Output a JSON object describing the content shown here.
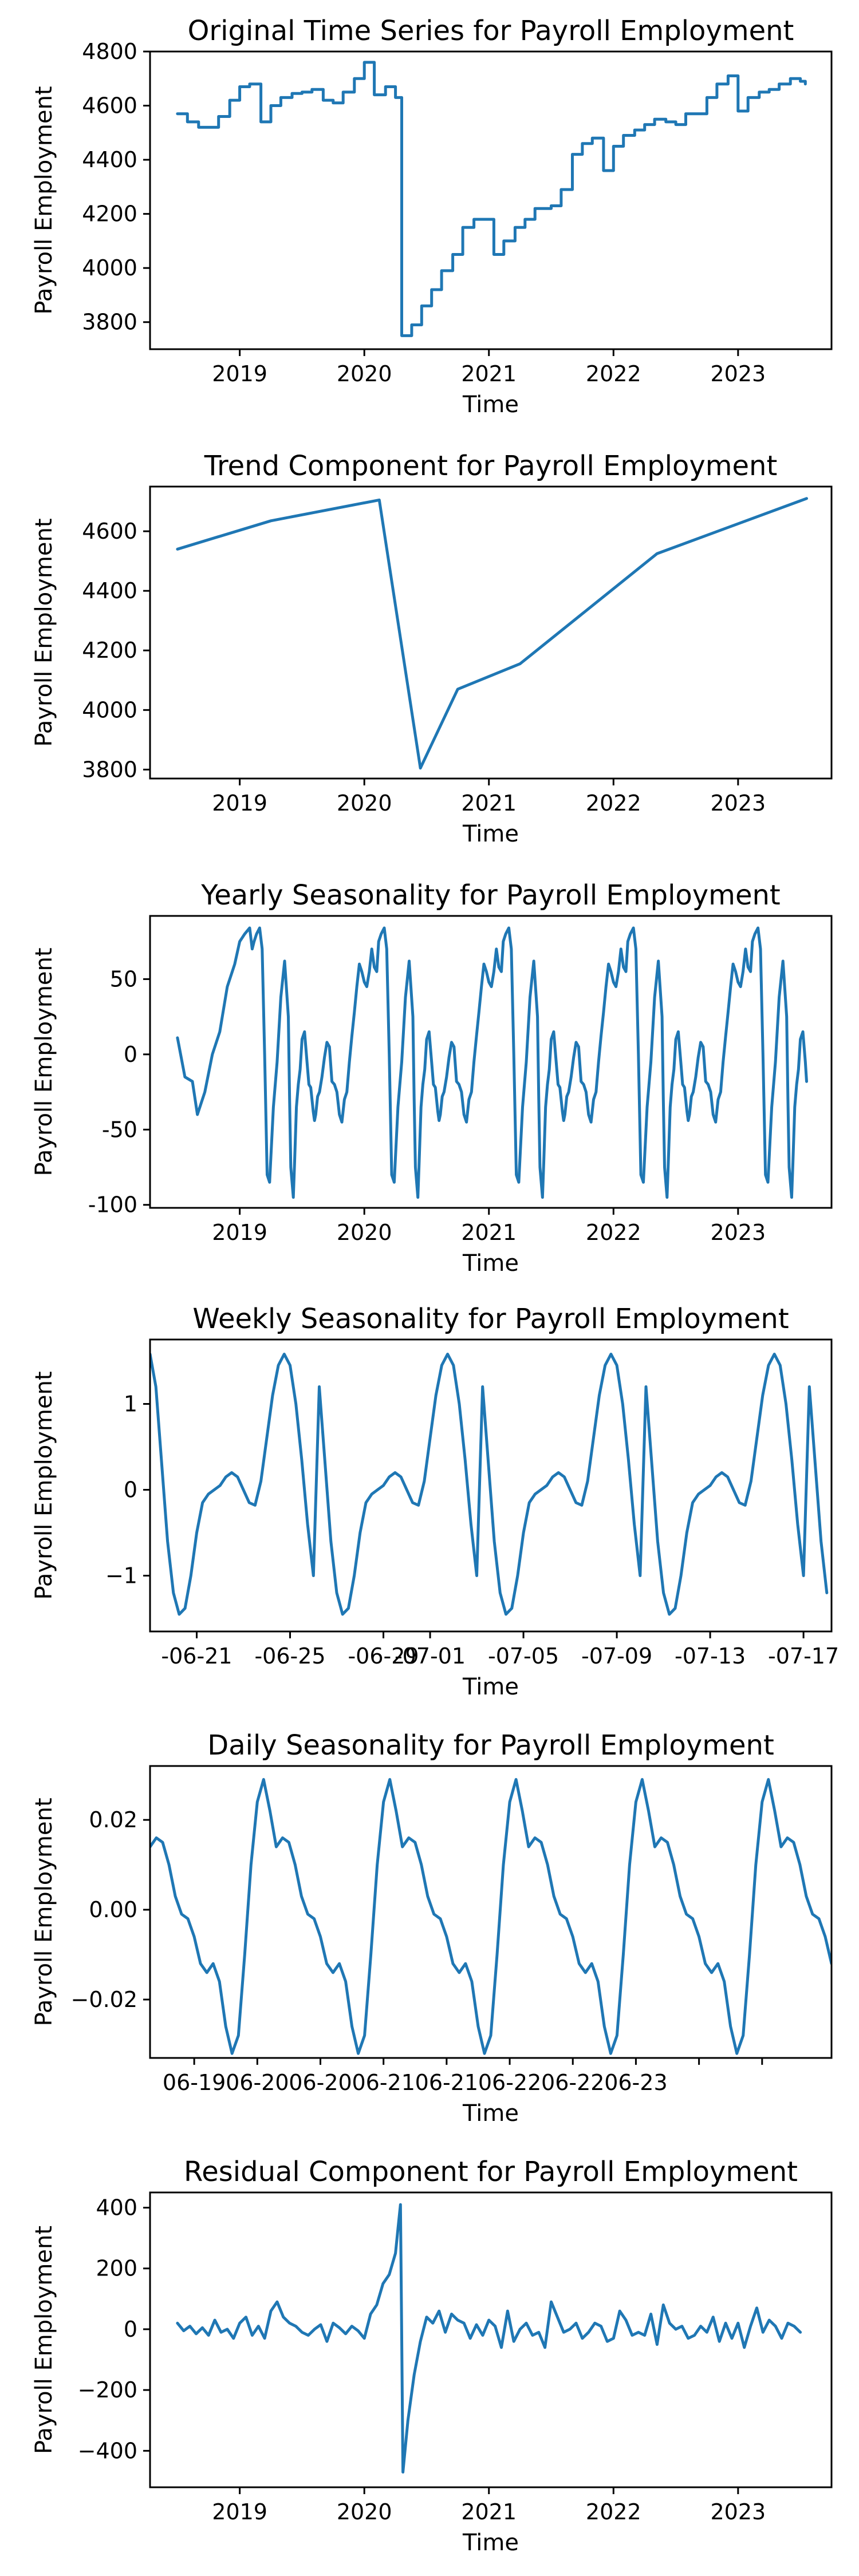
{
  "colors": {
    "line": "#1f77b4"
  },
  "chart_data": [
    {
      "type": "line",
      "title": "Original Time Series for Payroll Employment",
      "xlabel": "Time",
      "ylabel": "Payroll Employment",
      "step": true,
      "xlim": [
        2018.28,
        2023.75
      ],
      "ylim": [
        3700,
        4800
      ],
      "xticks": [
        2019,
        2020,
        2021,
        2022,
        2023
      ],
      "xtick_labels": [
        "2019",
        "2020",
        "2021",
        "2022",
        "2023"
      ],
      "yticks": [
        3800,
        4000,
        4200,
        4400,
        4600,
        4800
      ],
      "ytick_labels": [
        "3800",
        "4000",
        "4200",
        "4400",
        "4600",
        "4800"
      ],
      "series": [
        {
          "x": [
            2018.5,
            2018.58,
            2018.67,
            2018.83,
            2018.92,
            2019.0,
            2019.08,
            2019.17,
            2019.25,
            2019.33,
            2019.42,
            2019.5,
            2019.58,
            2019.67,
            2019.75,
            2019.83,
            2019.92,
            2020.0,
            2020.08,
            2020.17,
            2020.25,
            2020.3,
            2020.38,
            2020.46,
            2020.54,
            2020.62,
            2020.71,
            2020.79,
            2020.88,
            2020.96,
            2021.04,
            2021.12,
            2021.21,
            2021.29,
            2021.37,
            2021.5,
            2021.58,
            2021.67,
            2021.75,
            2021.83,
            2021.92,
            2022.0,
            2022.08,
            2022.17,
            2022.25,
            2022.33,
            2022.42,
            2022.5,
            2022.58,
            2022.75,
            2022.83,
            2022.92,
            2023.0,
            2023.08,
            2023.17,
            2023.25,
            2023.33,
            2023.42,
            2023.5,
            2023.54
          ],
          "values": [
            4570,
            4540,
            4520,
            4560,
            4620,
            4670,
            4680,
            4540,
            4600,
            4630,
            4645,
            4650,
            4660,
            4620,
            4610,
            4650,
            4700,
            4760,
            4640,
            4670,
            4630,
            3750,
            3790,
            3860,
            3920,
            3990,
            4050,
            4150,
            4180,
            4180,
            4050,
            4100,
            4150,
            4180,
            4220,
            4230,
            4290,
            4420,
            4460,
            4480,
            4360,
            4450,
            4490,
            4510,
            4530,
            4550,
            4540,
            4530,
            4570,
            4630,
            4680,
            4710,
            4580,
            4630,
            4650,
            4660,
            4680,
            4700,
            4690,
            4680
          ]
        }
      ]
    },
    {
      "type": "line",
      "title": "Trend Component for Payroll Employment",
      "xlabel": "Time",
      "ylabel": "Payroll Employment",
      "xlim": [
        2018.28,
        2023.75
      ],
      "ylim": [
        3770,
        4750
      ],
      "xticks": [
        2019,
        2020,
        2021,
        2022,
        2023
      ],
      "xtick_labels": [
        "2019",
        "2020",
        "2021",
        "2022",
        "2023"
      ],
      "yticks": [
        3800,
        4000,
        4200,
        4400,
        4600
      ],
      "ytick_labels": [
        "3800",
        "4000",
        "4200",
        "4400",
        "4600"
      ],
      "series": [
        {
          "x": [
            2018.5,
            2019.25,
            2020.12,
            2020.45,
            2020.75,
            2021.25,
            2022.35,
            2023.55
          ],
          "values": [
            4540,
            4635,
            4705,
            3805,
            4070,
            4155,
            4525,
            4710
          ]
        }
      ]
    },
    {
      "type": "line",
      "title": "Yearly Seasonality for Payroll Employment",
      "xlabel": "Time",
      "ylabel": "Payroll Employment",
      "xlim": [
        2018.28,
        2023.75
      ],
      "ylim": [
        -102,
        92
      ],
      "xticks": [
        2019,
        2020,
        2021,
        2022,
        2023
      ],
      "xtick_labels": [
        "2019",
        "2020",
        "2021",
        "2022",
        "2023"
      ],
      "yticks": [
        -100,
        -50,
        0,
        50
      ],
      "ytick_labels": [
        "-100",
        "-50",
        "0",
        "50"
      ],
      "pattern_start": 2018.5,
      "pattern_end": 2023.55,
      "pattern_phase": [
        0,
        0.015,
        0.035,
        0.06,
        0.08,
        0.1,
        0.12,
        0.14,
        0.17,
        0.2,
        0.23,
        0.26,
        0.29,
        0.3,
        0.31,
        0.33,
        0.34,
        0.355,
        0.37,
        0.385,
        0.4,
        0.42,
        0.44,
        0.455,
        0.47,
        0.49,
        0.5,
        0.51,
        0.525,
        0.54,
        0.56,
        0.58,
        0.6,
        0.62,
        0.64,
        0.66,
        0.68,
        0.7,
        0.72,
        0.74,
        0.76,
        0.78,
        0.8,
        0.82,
        0.84,
        0.86,
        0.88,
        0.9,
        0.92,
        0.94,
        0.96,
        0.98,
        1.0
      ],
      "pattern_values": [
        55,
        75,
        80,
        84,
        70,
        0,
        -80,
        -85,
        -35,
        -5,
        38,
        62,
        25,
        -30,
        -75,
        -95,
        -72,
        -35,
        -20,
        -10,
        10,
        15,
        -5,
        -20,
        -22,
        -38,
        -44,
        -40,
        -28,
        -25,
        -15,
        -2,
        8,
        5,
        -18,
        -20,
        -25,
        -40,
        -45,
        -30,
        -25,
        -5,
        12,
        28,
        45,
        60,
        55,
        48,
        45,
        55,
        70,
        58,
        55
      ],
      "series": [
        {
          "x": [
            2018.5,
            2018.56,
            2018.62,
            2018.66,
            2018.72,
            2018.78,
            2018.84,
            2018.9,
            2018.96,
            2019.0,
            2019.04,
            2019.08,
            2019.1
          ],
          "values": [
            11,
            -15,
            -18,
            -40,
            -25,
            0,
            15,
            45,
            60,
            75,
            80,
            84,
            70
          ]
        }
      ]
    },
    {
      "type": "line",
      "title": "Weekly Seasonality for Payroll Employment",
      "xlabel": "Time",
      "ylabel": "Payroll Employment",
      "xlim": [
        0,
        29.2
      ],
      "ylim": [
        -1.65,
        1.75
      ],
      "xticks": [
        2.0,
        6.0,
        10.0,
        12.0,
        16.0,
        20.0,
        24.0,
        28.0
      ],
      "xtick_labels": [
        "-06-21",
        "-06-25",
        "-06-29",
        "-07-01",
        "-07-05",
        "-07-09",
        "-07-13",
        "-07-17"
      ],
      "yticks": [
        -1,
        0,
        1
      ],
      "ytick_labels": [
        "−1",
        "0",
        "1"
      ],
      "period_days": 7,
      "curve_x": [
        0,
        0.25,
        0.5,
        0.75,
        1.0,
        1.25,
        1.5,
        1.75,
        2.0,
        2.25,
        2.5,
        2.75,
        3.0,
        3.25,
        3.5,
        3.75,
        4.0,
        4.25,
        4.5,
        4.75,
        5.0,
        5.25,
        5.5,
        5.75,
        6.0,
        6.25,
        6.5,
        6.75,
        7.0
      ],
      "curve_y": [
        1.58,
        1.2,
        0.3,
        -0.6,
        -1.2,
        -1.45,
        -1.38,
        -1.0,
        -0.5,
        -0.15,
        -0.05,
        0.0,
        0.05,
        0.15,
        0.2,
        0.15,
        0.0,
        -0.15,
        -0.18,
        0.1,
        0.6,
        1.1,
        1.45,
        1.58,
        1.45,
        1.0,
        0.35,
        -0.4,
        -1.0
      ],
      "series": [
        {
          "name": "",
          "values": []
        }
      ]
    },
    {
      "type": "line",
      "title": "Daily Seasonality for Payroll Employment",
      "xlabel": "Time",
      "ylabel": "Payroll Employment",
      "xlim": [
        0,
        5.4
      ],
      "ylim": [
        -0.033,
        0.032
      ],
      "xticks": [
        0.35,
        0.85,
        1.35,
        1.85,
        2.35,
        2.85,
        3.35,
        3.85,
        4.35,
        4.85
      ],
      "xtick_labels": [
        "06-19",
        "06-20",
        "06-20",
        "06-21",
        "06-21",
        "06-22",
        "06-22",
        "06-23",
        "",
        ""
      ],
      "yticks": [
        -0.02,
        0.0,
        0.02
      ],
      "ytick_labels": [
        "−0.02",
        "0.00",
        "0.02"
      ],
      "period_days": 1,
      "curve_x": [
        0,
        0.05,
        0.1,
        0.15,
        0.2,
        0.25,
        0.3,
        0.35,
        0.4,
        0.45,
        0.5,
        0.55,
        0.6,
        0.65,
        0.7,
        0.75,
        0.8,
        0.85,
        0.9,
        0.95,
        1.0
      ],
      "curve_y": [
        0.014,
        0.016,
        0.015,
        0.01,
        0.003,
        -0.001,
        -0.002,
        -0.006,
        -0.012,
        -0.014,
        -0.012,
        -0.016,
        -0.026,
        -0.032,
        -0.028,
        -0.01,
        0.01,
        0.024,
        0.029,
        0.022,
        0.014
      ],
      "series": [
        {
          "name": "",
          "values": []
        }
      ]
    },
    {
      "type": "line",
      "title": "Residual Component for Payroll Employment",
      "xlabel": "Time",
      "ylabel": "Payroll Employment",
      "xlim": [
        2018.28,
        2023.75
      ],
      "ylim": [
        -520,
        450
      ],
      "xticks": [
        2019,
        2020,
        2021,
        2022,
        2023
      ],
      "xtick_labels": [
        "2019",
        "2020",
        "2021",
        "2022",
        "2023"
      ],
      "yticks": [
        -400,
        -200,
        0,
        200,
        400
      ],
      "ytick_labels": [
        "−400",
        "−200",
        "0",
        "200",
        "400"
      ],
      "series": [
        {
          "x": [
            2018.5,
            2018.55,
            2018.6,
            2018.65,
            2018.7,
            2018.75,
            2018.8,
            2018.85,
            2018.9,
            2018.95,
            2019.0,
            2019.05,
            2019.1,
            2019.15,
            2019.2,
            2019.25,
            2019.3,
            2019.35,
            2019.4,
            2019.45,
            2019.5,
            2019.55,
            2019.6,
            2019.65,
            2019.7,
            2019.75,
            2019.8,
            2019.85,
            2019.9,
            2019.95,
            2020.0,
            2020.05,
            2020.1,
            2020.15,
            2020.2,
            2020.25,
            2020.27,
            2020.29,
            2020.3,
            2020.31,
            2020.35,
            2020.4,
            2020.45,
            2020.5,
            2020.55,
            2020.6,
            2020.65,
            2020.7,
            2020.75,
            2020.8,
            2020.85,
            2020.9,
            2020.95,
            2021.0,
            2021.05,
            2021.1,
            2021.15,
            2021.2,
            2021.25,
            2021.3,
            2021.35,
            2021.4,
            2021.45,
            2021.5,
            2021.55,
            2021.6,
            2021.65,
            2021.7,
            2021.75,
            2021.8,
            2021.85,
            2021.9,
            2021.95,
            2022.0,
            2022.05,
            2022.1,
            2022.15,
            2022.2,
            2022.25,
            2022.3,
            2022.35,
            2022.4,
            2022.45,
            2022.5,
            2022.55,
            2022.6,
            2022.65,
            2022.7,
            2022.75,
            2022.8,
            2022.85,
            2022.9,
            2022.95,
            2023.0,
            2023.05,
            2023.1,
            2023.15,
            2023.2,
            2023.25,
            2023.3,
            2023.35,
            2023.4,
            2023.45,
            2023.5
          ],
          "values": [
            20,
            -5,
            10,
            -15,
            5,
            -20,
            30,
            -10,
            0,
            -30,
            20,
            40,
            -20,
            10,
            -30,
            60,
            90,
            40,
            20,
            10,
            -10,
            -20,
            0,
            15,
            -40,
            20,
            5,
            -15,
            10,
            -5,
            -30,
            50,
            80,
            150,
            180,
            250,
            330,
            410,
            -30,
            -470,
            -300,
            -150,
            -40,
            40,
            20,
            60,
            -10,
            50,
            30,
            20,
            -30,
            15,
            -20,
            30,
            10,
            -60,
            60,
            -40,
            0,
            20,
            -20,
            -10,
            -60,
            90,
            40,
            -10,
            0,
            20,
            -30,
            -10,
            20,
            10,
            -40,
            -30,
            60,
            30,
            -20,
            -10,
            -20,
            50,
            -50,
            80,
            20,
            0,
            10,
            -30,
            -20,
            10,
            -10,
            40,
            -40,
            20,
            -30,
            20,
            -60,
            10,
            70,
            -10,
            30,
            10,
            -30,
            20,
            10,
            -10
          ]
        }
      ]
    }
  ]
}
